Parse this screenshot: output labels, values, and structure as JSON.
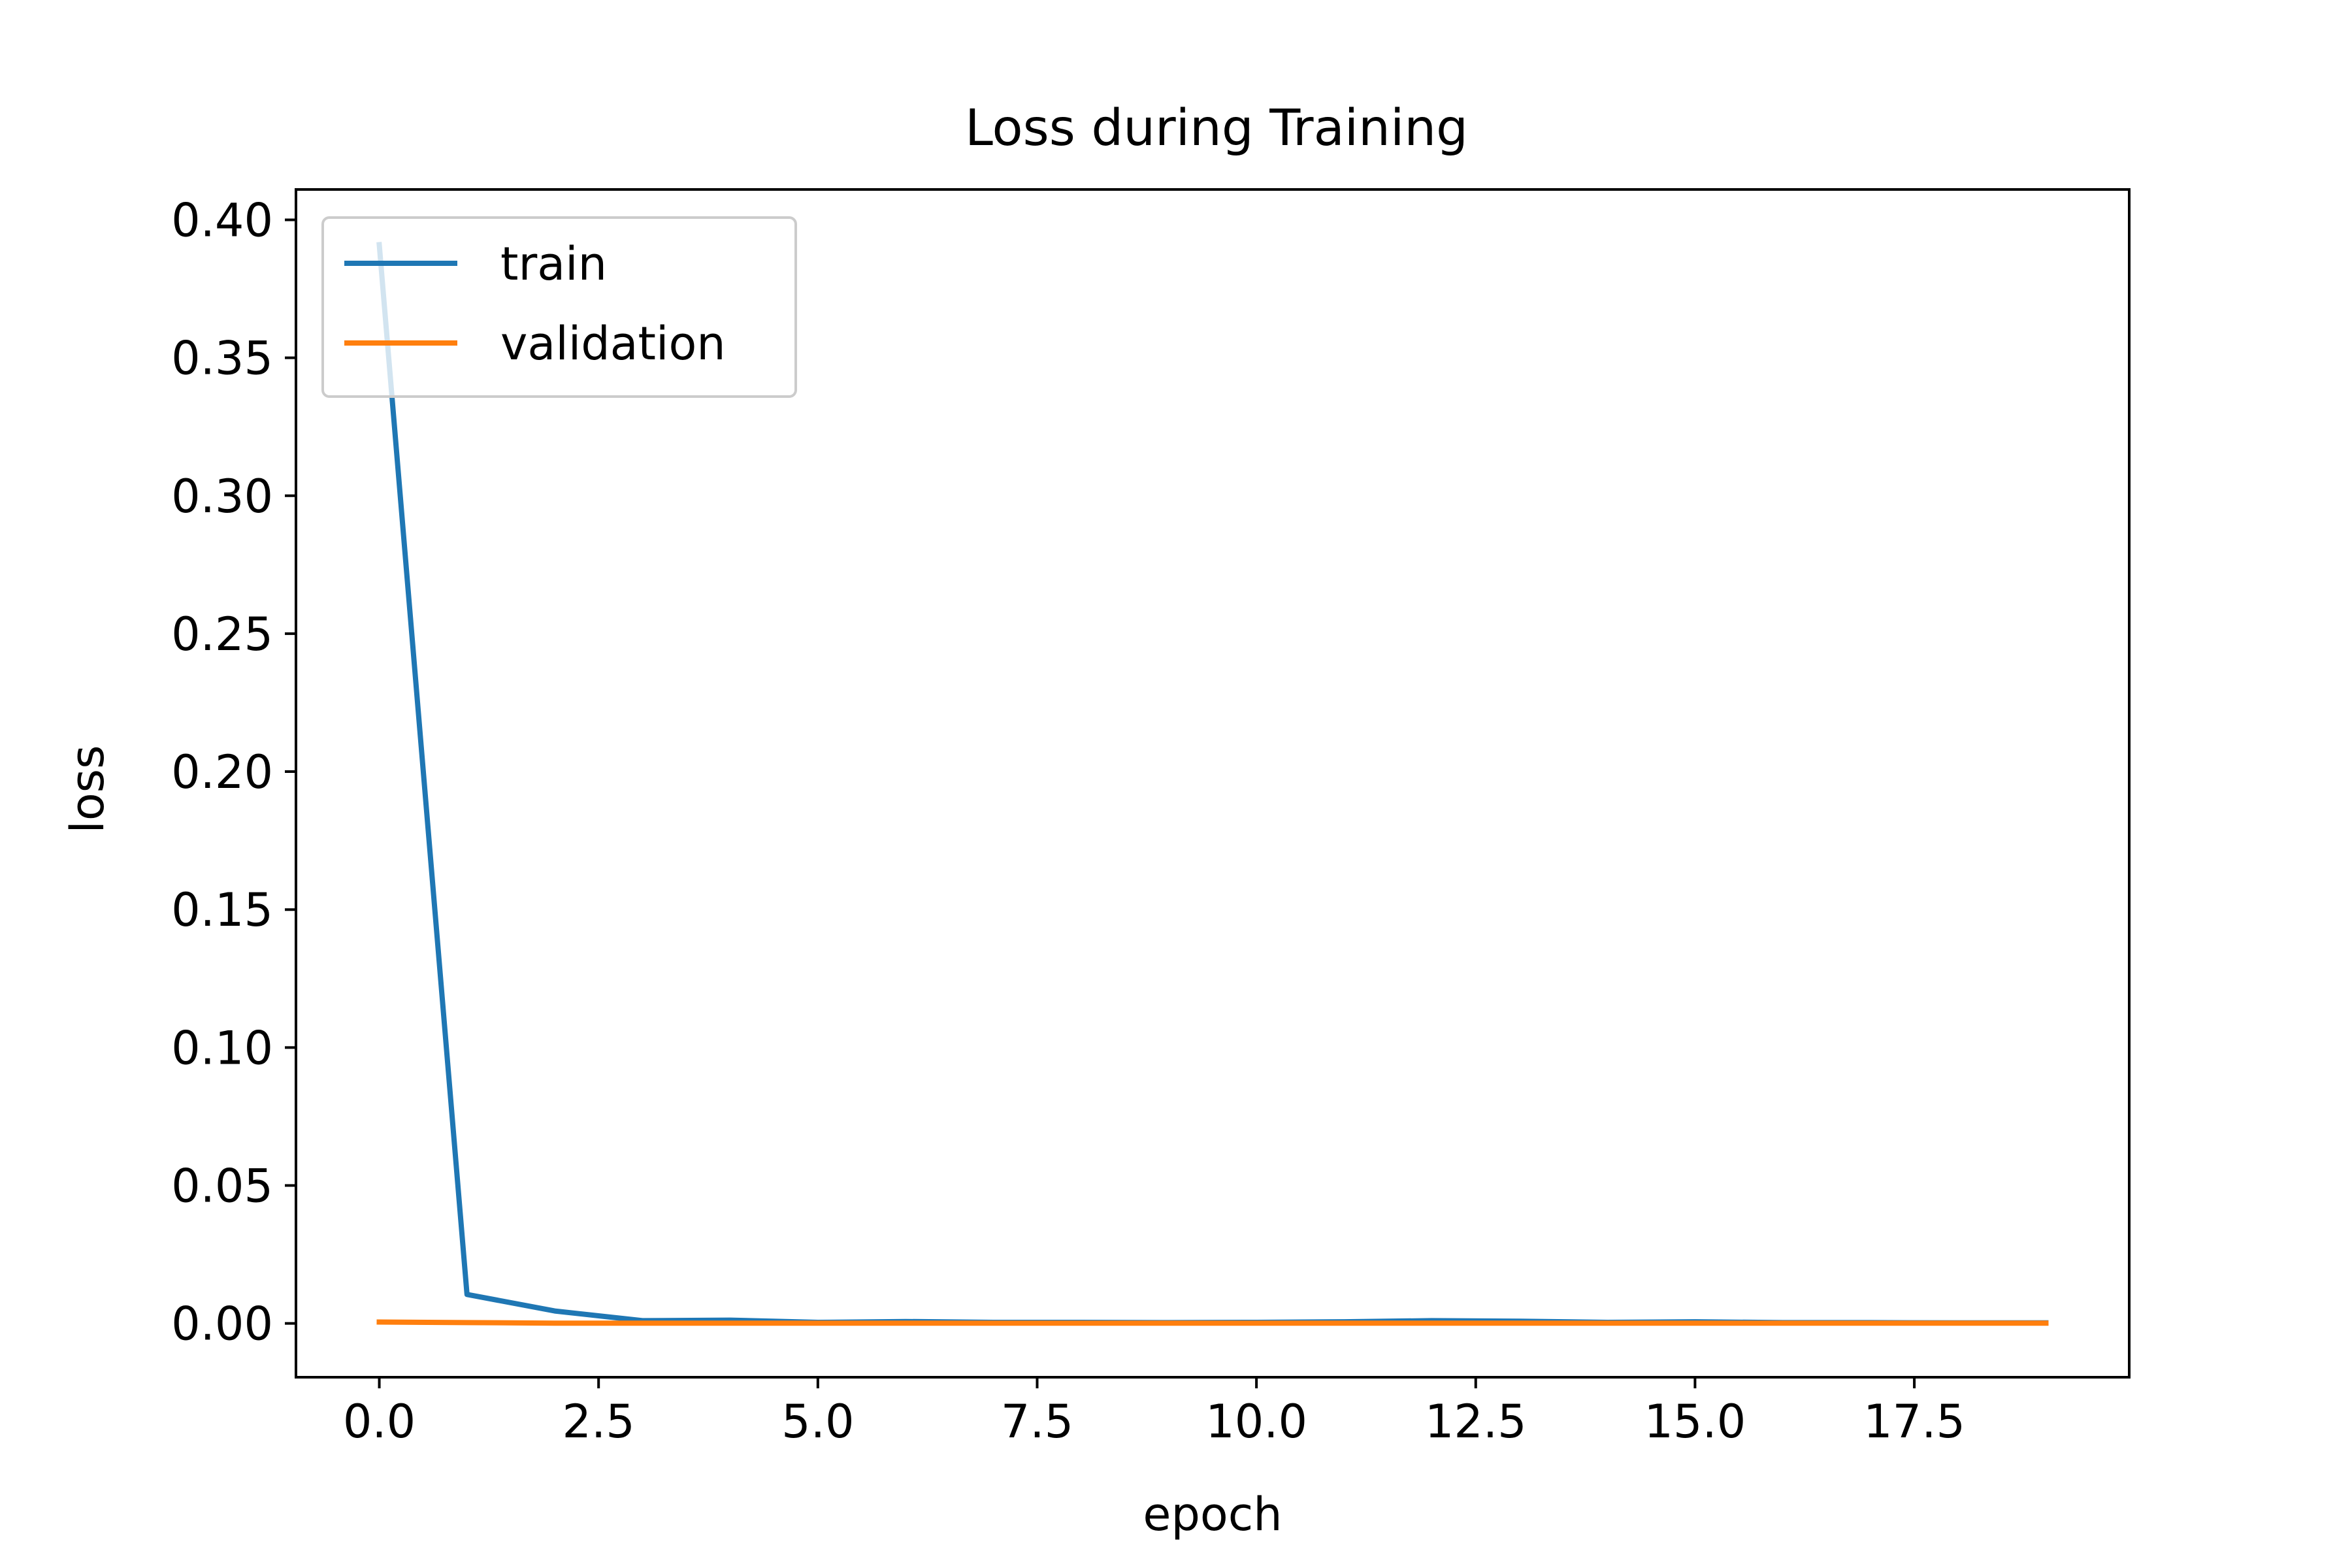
{
  "chart_data": {
    "type": "line",
    "title": "Loss during Training",
    "xlabel": "epoch",
    "ylabel": "loss",
    "xlim": [
      -0.95,
      19.95
    ],
    "ylim": [
      -0.0195,
      0.411
    ],
    "x_ticks": [
      0.0,
      2.5,
      5.0,
      7.5,
      10.0,
      12.5,
      15.0,
      17.5
    ],
    "x_tick_labels": [
      "0.0",
      "2.5",
      "5.0",
      "7.5",
      "10.0",
      "12.5",
      "15.0",
      "17.5"
    ],
    "y_ticks": [
      0.0,
      0.05,
      0.1,
      0.15,
      0.2,
      0.25,
      0.3,
      0.35,
      0.4
    ],
    "y_tick_labels": [
      "0.00",
      "0.05",
      "0.10",
      "0.15",
      "0.20",
      "0.25",
      "0.30",
      "0.35",
      "0.40"
    ],
    "grid": false,
    "legend_position": "upper left",
    "x": [
      0,
      1,
      2,
      3,
      4,
      5,
      6,
      7,
      8,
      9,
      10,
      11,
      12,
      13,
      14,
      15,
      16,
      17,
      18,
      19
    ],
    "series": [
      {
        "name": "train",
        "color": "#1f77b4",
        "values": [
          0.391,
          0.0105,
          0.0045,
          0.001,
          0.0012,
          0.0004,
          0.0007,
          0.0004,
          0.0004,
          0.0003,
          0.0004,
          0.0006,
          0.001,
          0.0008,
          0.0004,
          0.0006,
          0.0003,
          0.0003,
          0.0002,
          0.0002
        ]
      },
      {
        "name": "validation",
        "color": "#ff7f0e",
        "values": [
          0.0005,
          0.0003,
          0.0001,
          0.0001,
          0.0001,
          0.0001,
          0.0001,
          0.0001,
          0.0001,
          0.0001,
          0.0001,
          0.0001,
          0.0001,
          0.0001,
          0.0001,
          0.0001,
          0.0001,
          0.0001,
          0.0001,
          0.0001
        ]
      }
    ]
  }
}
